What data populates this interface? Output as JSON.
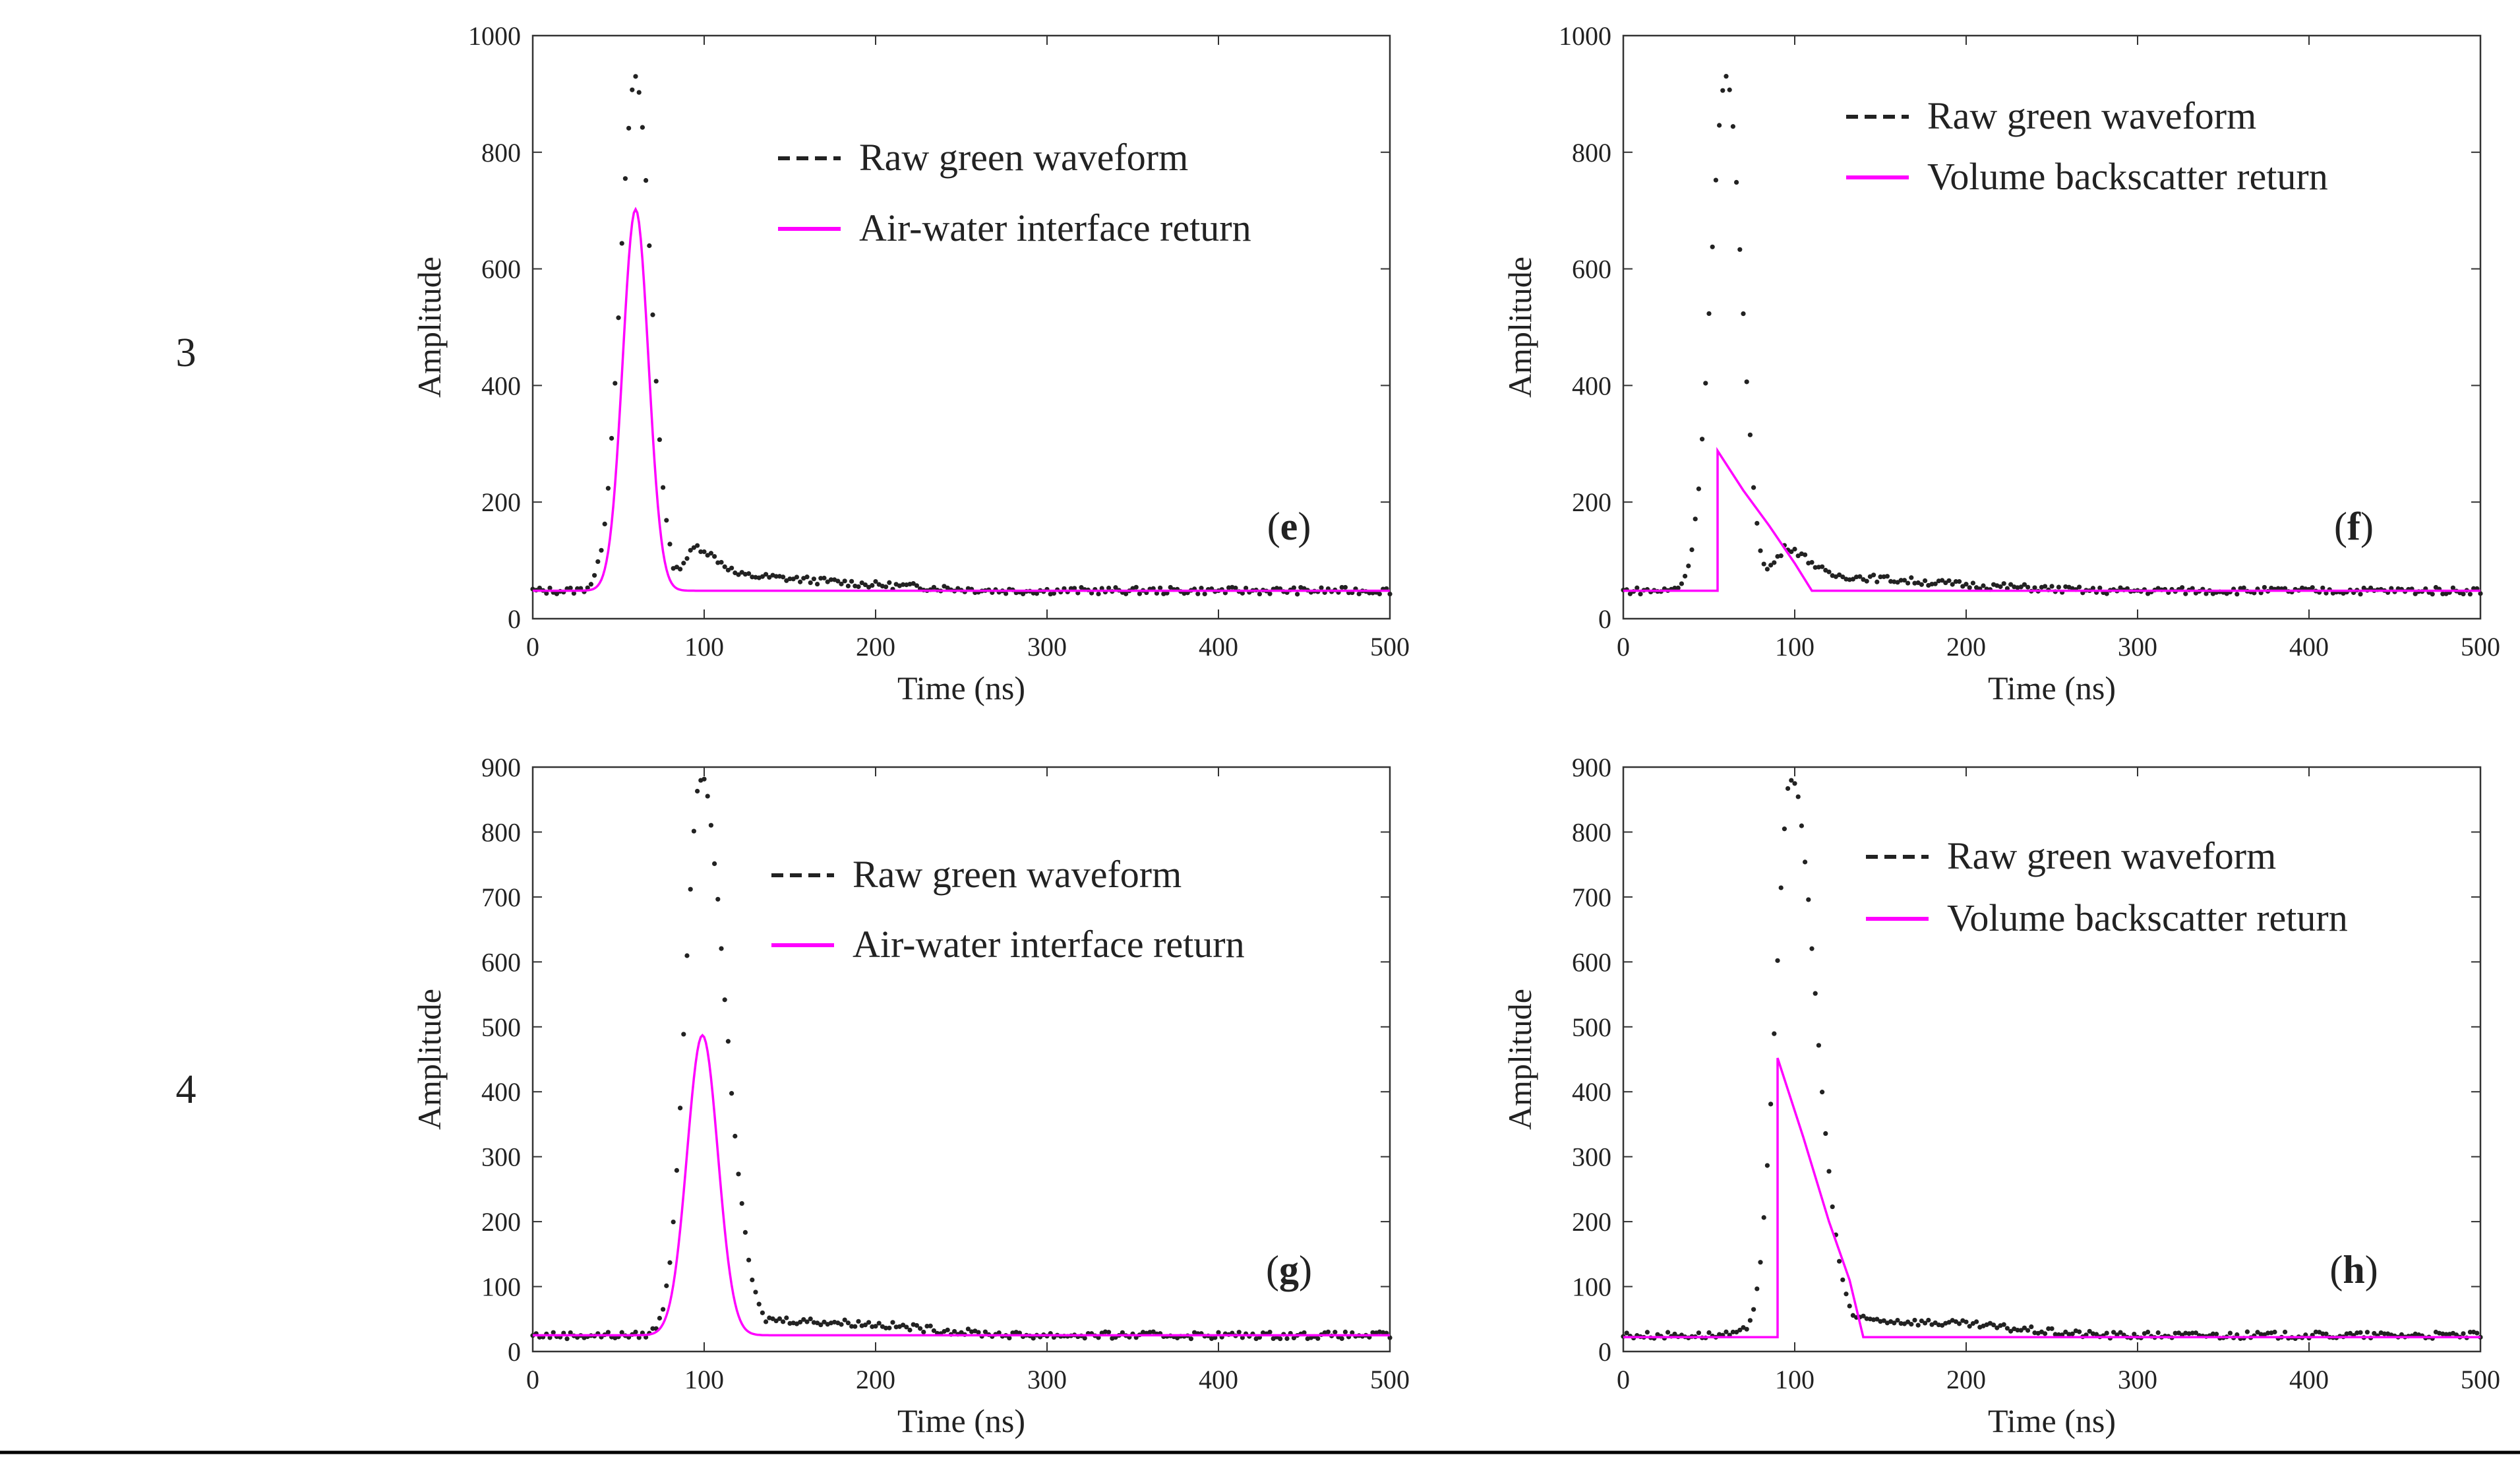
{
  "row_labels": [
    "3",
    "4"
  ],
  "colors": {
    "raw": "#222222",
    "fit": "#ff00ff",
    "axis": "#333333"
  },
  "chart_data": [
    {
      "type": "scatter+line",
      "panel": "e",
      "panel_label": [
        "(",
        "e",
        ")"
      ],
      "xlabel": "Time (ns)",
      "ylabel": "Amplitude",
      "xlim": [
        0,
        500
      ],
      "ylim": [
        0,
        1000
      ],
      "xticks": [
        0,
        100,
        200,
        300,
        400,
        500
      ],
      "yticks": [
        0,
        200,
        400,
        600,
        800,
        1000
      ],
      "legend": [
        "Raw green waveform",
        "Air-water interface return"
      ],
      "raw": {
        "baseline": 48,
        "peak_t": 60,
        "peak_a": 925,
        "rise": 9,
        "fall": 9,
        "shoulder_t": 95,
        "shoulder_a": 125,
        "tail": [
          [
            100,
            118
          ],
          [
            120,
            75
          ],
          [
            200,
            58
          ],
          [
            300,
            44
          ],
          [
            500,
            38
          ]
        ]
      },
      "fit": {
        "model": "gaussian",
        "baseline": 48,
        "t0": 60,
        "amp": 702,
        "sigma": 7.5,
        "t_start": 0,
        "t_end": 100,
        "after_level": 48
      }
    },
    {
      "type": "scatter+line",
      "panel": "f",
      "panel_label": [
        "(",
        "f",
        ")"
      ],
      "xlabel": "Time (ns)",
      "ylabel": "Amplitude",
      "xlim": [
        0,
        500
      ],
      "ylim": [
        0,
        1000
      ],
      "xticks": [
        0,
        100,
        200,
        300,
        400,
        500
      ],
      "yticks": [
        0,
        200,
        400,
        600,
        800,
        1000
      ],
      "legend": [
        "Raw green waveform",
        "Volume backscatter return"
      ],
      "raw": {
        "baseline": 48,
        "peak_t": 60,
        "peak_a": 925,
        "rise": 9,
        "fall": 9,
        "shoulder_t": 95,
        "shoulder_a": 125,
        "tail": [
          [
            100,
            118
          ],
          [
            120,
            75
          ],
          [
            200,
            58
          ],
          [
            300,
            44
          ],
          [
            500,
            38
          ]
        ]
      },
      "fit": {
        "model": "exp_decay",
        "baseline": 48,
        "t_on": 55,
        "amp": 288,
        "t_off": 110,
        "decay": [
          [
            55,
            288
          ],
          [
            70,
            220
          ],
          [
            85,
            160
          ],
          [
            100,
            95
          ],
          [
            110,
            48
          ]
        ]
      }
    },
    {
      "type": "scatter+line",
      "panel": "g",
      "panel_label": [
        "(",
        "g",
        ")"
      ],
      "xlabel": "Time (ns)",
      "ylabel": "Amplitude",
      "xlim": [
        0,
        500
      ],
      "ylim": [
        0,
        900
      ],
      "xticks": [
        0,
        100,
        200,
        300,
        400,
        500
      ],
      "yticks": [
        0,
        100,
        200,
        300,
        400,
        500,
        600,
        700,
        800,
        900
      ],
      "legend": [
        "Raw green waveform",
        "Air-water interface return"
      ],
      "raw": {
        "baseline": 25,
        "peak_t": 98,
        "peak_a": 885,
        "rise": 9,
        "fall": 14,
        "shoulder_t": 130,
        "shoulder_a": 55,
        "tail": [
          [
            135,
            50
          ],
          [
            200,
            42
          ],
          [
            250,
            30
          ],
          [
            300,
            22
          ],
          [
            500,
            18
          ]
        ]
      },
      "fit": {
        "model": "gaussian",
        "baseline": 25,
        "t0": 99,
        "amp": 487,
        "sigma": 9,
        "t_start": 0,
        "t_end": 130,
        "after_level": 25
      }
    },
    {
      "type": "scatter+line",
      "panel": "h",
      "panel_label": [
        "(",
        "h",
        ")"
      ],
      "xlabel": "Time (ns)",
      "ylabel": "Amplitude",
      "xlim": [
        0,
        500
      ],
      "ylim": [
        0,
        900
      ],
      "xticks": [
        0,
        100,
        200,
        300,
        400,
        500
      ],
      "yticks": [
        0,
        100,
        200,
        300,
        400,
        500,
        600,
        700,
        800,
        900
      ],
      "legend": [
        "Raw green waveform",
        "Volume backscatter return"
      ],
      "raw": {
        "baseline": 25,
        "peak_t": 98,
        "peak_a": 885,
        "rise": 9,
        "fall": 14,
        "shoulder_t": 130,
        "shoulder_a": 55,
        "tail": [
          [
            135,
            50
          ],
          [
            200,
            42
          ],
          [
            250,
            30
          ],
          [
            300,
            22
          ],
          [
            500,
            18
          ]
        ]
      },
      "fit": {
        "model": "exp_decay",
        "baseline": 22,
        "t_on": 90,
        "amp": 452,
        "t_off": 140,
        "decay": [
          [
            90,
            452
          ],
          [
            105,
            330
          ],
          [
            120,
            200
          ],
          [
            132,
            110
          ],
          [
            140,
            22
          ]
        ]
      }
    }
  ]
}
